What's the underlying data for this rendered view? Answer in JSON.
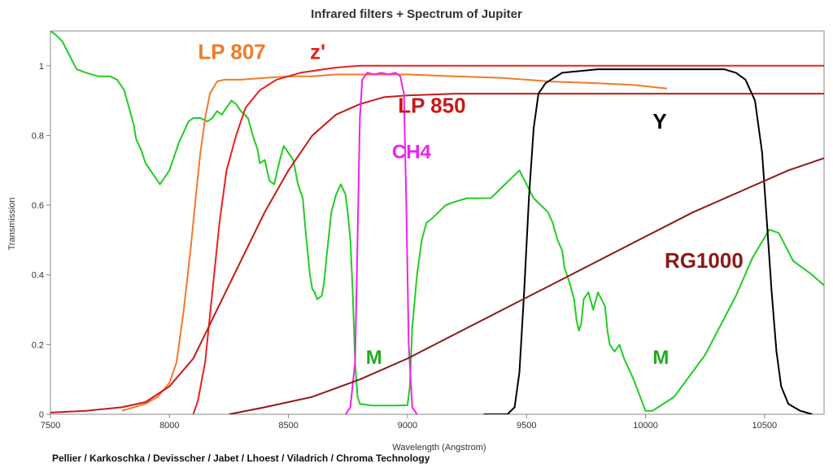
{
  "chart_data": {
    "type": "line",
    "title": "Infrared filters + Spectrum of Jupiter",
    "xlabel": "Wavelength (Angstrom)",
    "ylabel": "Transmission",
    "credit": "Pellier / Karkoschka / Devisscher / Jabet / Lhoest / Viladrich / Chroma Technology",
    "xlim": [
      7500,
      10750
    ],
    "ylim": [
      0,
      1.1
    ],
    "x_ticks": [
      7500,
      8000,
      8500,
      9000,
      9500,
      10000,
      10500
    ],
    "y_ticks": [
      0,
      0.2,
      0.4,
      0.6,
      0.8,
      1
    ],
    "grid": false,
    "series": [
      {
        "color": "#22cc22",
        "points": [
          [
            7500,
            1.1
          ],
          [
            7520,
            1.09
          ],
          [
            7550,
            1.07
          ],
          [
            7580,
            1.03
          ],
          [
            7610,
            0.99
          ],
          [
            7650,
            0.98
          ],
          [
            7700,
            0.97
          ],
          [
            7750,
            0.97
          ],
          [
            7780,
            0.96
          ],
          [
            7810,
            0.93
          ],
          [
            7830,
            0.88
          ],
          [
            7850,
            0.83
          ],
          [
            7860,
            0.79
          ],
          [
            7880,
            0.76
          ],
          [
            7900,
            0.72
          ],
          [
            7920,
            0.7
          ],
          [
            7940,
            0.68
          ],
          [
            7960,
            0.66
          ],
          [
            7980,
            0.68
          ],
          [
            8000,
            0.7
          ],
          [
            8020,
            0.74
          ],
          [
            8040,
            0.78
          ],
          [
            8060,
            0.81
          ],
          [
            8080,
            0.84
          ],
          [
            8100,
            0.85
          ],
          [
            8130,
            0.85
          ],
          [
            8160,
            0.84
          ],
          [
            8180,
            0.85
          ],
          [
            8200,
            0.87
          ],
          [
            8220,
            0.86
          ],
          [
            8240,
            0.88
          ],
          [
            8260,
            0.9
          ],
          [
            8280,
            0.89
          ],
          [
            8300,
            0.87
          ],
          [
            8330,
            0.85
          ],
          [
            8350,
            0.8
          ],
          [
            8370,
            0.76
          ],
          [
            8380,
            0.72
          ],
          [
            8400,
            0.73
          ],
          [
            8420,
            0.67
          ],
          [
            8440,
            0.66
          ],
          [
            8460,
            0.72
          ],
          [
            8480,
            0.77
          ],
          [
            8500,
            0.75
          ],
          [
            8520,
            0.73
          ],
          [
            8540,
            0.66
          ],
          [
            8560,
            0.62
          ],
          [
            8570,
            0.54
          ],
          [
            8580,
            0.47
          ],
          [
            8590,
            0.4
          ],
          [
            8600,
            0.36
          ],
          [
            8610,
            0.35
          ],
          [
            8620,
            0.33
          ],
          [
            8640,
            0.34
          ],
          [
            8650,
            0.38
          ],
          [
            8660,
            0.45
          ],
          [
            8680,
            0.58
          ],
          [
            8700,
            0.63
          ],
          [
            8720,
            0.66
          ],
          [
            8740,
            0.63
          ],
          [
            8750,
            0.57
          ],
          [
            8760,
            0.5
          ],
          [
            8770,
            0.35
          ],
          [
            8780,
            0.15
          ],
          [
            8790,
            0.05
          ],
          [
            8800,
            0.03
          ],
          [
            8850,
            0.025
          ],
          [
            8900,
            0.025
          ],
          [
            8950,
            0.025
          ],
          [
            9000,
            0.026
          ],
          [
            9010,
            0.08
          ],
          [
            9020,
            0.25
          ],
          [
            9040,
            0.4
          ],
          [
            9060,
            0.5
          ],
          [
            9080,
            0.55
          ],
          [
            9100,
            0.56
          ],
          [
            9130,
            0.58
          ],
          [
            9160,
            0.6
          ],
          [
            9200,
            0.61
          ],
          [
            9250,
            0.62
          ],
          [
            9300,
            0.62
          ],
          [
            9350,
            0.62
          ],
          [
            9380,
            0.64
          ],
          [
            9410,
            0.66
          ],
          [
            9440,
            0.68
          ],
          [
            9470,
            0.7
          ],
          [
            9500,
            0.66
          ],
          [
            9530,
            0.62
          ],
          [
            9560,
            0.6
          ],
          [
            9590,
            0.58
          ],
          [
            9610,
            0.55
          ],
          [
            9630,
            0.5
          ],
          [
            9650,
            0.47
          ],
          [
            9660,
            0.42
          ],
          [
            9680,
            0.38
          ],
          [
            9700,
            0.33
          ],
          [
            9710,
            0.27
          ],
          [
            9720,
            0.24
          ],
          [
            9730,
            0.26
          ],
          [
            9740,
            0.33
          ],
          [
            9760,
            0.35
          ],
          [
            9780,
            0.3
          ],
          [
            9800,
            0.35
          ],
          [
            9830,
            0.31
          ],
          [
            9840,
            0.24
          ],
          [
            9850,
            0.2
          ],
          [
            9870,
            0.18
          ],
          [
            9890,
            0.2
          ],
          [
            9910,
            0.16
          ],
          [
            9950,
            0.1
          ],
          [
            10000,
            0.01
          ],
          [
            10030,
            0.01
          ],
          [
            10120,
            0.05
          ],
          [
            10250,
            0.17
          ],
          [
            10380,
            0.34
          ],
          [
            10450,
            0.45
          ],
          [
            10520,
            0.53
          ],
          [
            10560,
            0.52
          ],
          [
            10620,
            0.44
          ],
          [
            10700,
            0.4
          ],
          [
            10750,
            0.37
          ]
        ]
      },
      {
        "name": "LP 807",
        "color": "#f07a2a",
        "points": [
          [
            7800,
            0.01
          ],
          [
            7850,
            0.02
          ],
          [
            7900,
            0.03
          ],
          [
            7950,
            0.05
          ],
          [
            8000,
            0.09
          ],
          [
            8030,
            0.15
          ],
          [
            8060,
            0.3
          ],
          [
            8090,
            0.48
          ],
          [
            8110,
            0.62
          ],
          [
            8130,
            0.75
          ],
          [
            8150,
            0.85
          ],
          [
            8170,
            0.92
          ],
          [
            8200,
            0.955
          ],
          [
            8230,
            0.96
          ],
          [
            8300,
            0.96
          ],
          [
            8400,
            0.965
          ],
          [
            8500,
            0.97
          ],
          [
            8600,
            0.97
          ],
          [
            8700,
            0.975
          ],
          [
            8800,
            0.975
          ],
          [
            9000,
            0.975
          ],
          [
            9200,
            0.97
          ],
          [
            9400,
            0.965
          ],
          [
            9600,
            0.955
          ],
          [
            9800,
            0.95
          ],
          [
            9950,
            0.945
          ],
          [
            10090,
            0.935
          ]
        ]
      },
      {
        "name": "z'",
        "color": "#e82020",
        "points": [
          [
            8100,
            0
          ],
          [
            8120,
            0.04
          ],
          [
            8150,
            0.15
          ],
          [
            8180,
            0.35
          ],
          [
            8210,
            0.55
          ],
          [
            8240,
            0.7
          ],
          [
            8280,
            0.8
          ],
          [
            8320,
            0.88
          ],
          [
            8380,
            0.93
          ],
          [
            8450,
            0.96
          ],
          [
            8550,
            0.98
          ],
          [
            8700,
            0.995
          ],
          [
            8800,
            1.0
          ],
          [
            9000,
            1.0
          ],
          [
            9500,
            1.0
          ],
          [
            10000,
            1.0
          ],
          [
            10750,
            1.0
          ]
        ]
      },
      {
        "name": "LP 850",
        "color": "#c81818",
        "points": [
          [
            7500,
            0.005
          ],
          [
            7650,
            0.01
          ],
          [
            7800,
            0.02
          ],
          [
            7900,
            0.035
          ],
          [
            8000,
            0.08
          ],
          [
            8100,
            0.16
          ],
          [
            8200,
            0.3
          ],
          [
            8300,
            0.44
          ],
          [
            8400,
            0.58
          ],
          [
            8500,
            0.7
          ],
          [
            8600,
            0.8
          ],
          [
            8700,
            0.86
          ],
          [
            8800,
            0.89
          ],
          [
            8900,
            0.91
          ],
          [
            9000,
            0.915
          ],
          [
            9200,
            0.92
          ],
          [
            10000,
            0.92
          ],
          [
            10750,
            0.92
          ]
        ]
      },
      {
        "name": "CH4",
        "color": "#ee22ee",
        "points": [
          [
            8740,
            0
          ],
          [
            8760,
            0.02
          ],
          [
            8780,
            0.15
          ],
          [
            8790,
            0.5
          ],
          [
            8800,
            0.85
          ],
          [
            8810,
            0.96
          ],
          [
            8830,
            0.98
          ],
          [
            8860,
            0.975
          ],
          [
            8890,
            0.98
          ],
          [
            8920,
            0.975
          ],
          [
            8950,
            0.98
          ],
          [
            8970,
            0.97
          ],
          [
            8985,
            0.92
          ],
          [
            8995,
            0.6
          ],
          [
            9005,
            0.2
          ],
          [
            9020,
            0.02
          ],
          [
            9040,
            0
          ]
        ]
      },
      {
        "name": "Y",
        "color": "#000000",
        "points": [
          [
            9320,
            0
          ],
          [
            9420,
            0
          ],
          [
            9450,
            0.02
          ],
          [
            9470,
            0.12
          ],
          [
            9490,
            0.35
          ],
          [
            9510,
            0.62
          ],
          [
            9530,
            0.82
          ],
          [
            9550,
            0.92
          ],
          [
            9580,
            0.95
          ],
          [
            9650,
            0.98
          ],
          [
            9800,
            0.99
          ],
          [
            10000,
            0.99
          ],
          [
            10200,
            0.99
          ],
          [
            10330,
            0.99
          ],
          [
            10380,
            0.98
          ],
          [
            10420,
            0.96
          ],
          [
            10460,
            0.9
          ],
          [
            10490,
            0.75
          ],
          [
            10510,
            0.55
          ],
          [
            10530,
            0.35
          ],
          [
            10550,
            0.18
          ],
          [
            10570,
            0.08
          ],
          [
            10600,
            0.03
          ],
          [
            10650,
            0.01
          ],
          [
            10700,
            0
          ]
        ]
      },
      {
        "name": "RG1000",
        "color": "#8b1a1a",
        "points": [
          [
            8250,
            0
          ],
          [
            8400,
            0.02
          ],
          [
            8600,
            0.05
          ],
          [
            8800,
            0.1
          ],
          [
            9000,
            0.16
          ],
          [
            9200,
            0.23
          ],
          [
            9400,
            0.3
          ],
          [
            9600,
            0.37
          ],
          [
            9800,
            0.44
          ],
          [
            10000,
            0.51
          ],
          [
            10200,
            0.58
          ],
          [
            10400,
            0.64
          ],
          [
            10600,
            0.7
          ],
          [
            10750,
            0.735
          ]
        ]
      }
    ],
    "annotations": [
      {
        "text": "LP 807",
        "x": 8120,
        "y": 1.02,
        "color": "#f07a2a",
        "size": 26
      },
      {
        "text": "z'",
        "x": 8590,
        "y": 1.02,
        "color": "#e82020",
        "size": 26
      },
      {
        "text": "LP 850",
        "x": 8960,
        "y": 0.865,
        "color": "#c81818",
        "size": 26
      },
      {
        "text": "CH4",
        "x": 8935,
        "y": 0.735,
        "color": "#ee22ee",
        "size": 24
      },
      {
        "text": "Y",
        "x": 10030,
        "y": 0.82,
        "color": "#000000",
        "size": 26
      },
      {
        "text": "RG1000",
        "x": 10080,
        "y": 0.42,
        "color": "#8b1a1a",
        "size": 26
      },
      {
        "text": "M",
        "x": 8825,
        "y": 0.145,
        "color": "#22aa22",
        "size": 24
      },
      {
        "text": "M",
        "x": 10030,
        "y": 0.145,
        "color": "#22aa22",
        "size": 24
      }
    ]
  }
}
